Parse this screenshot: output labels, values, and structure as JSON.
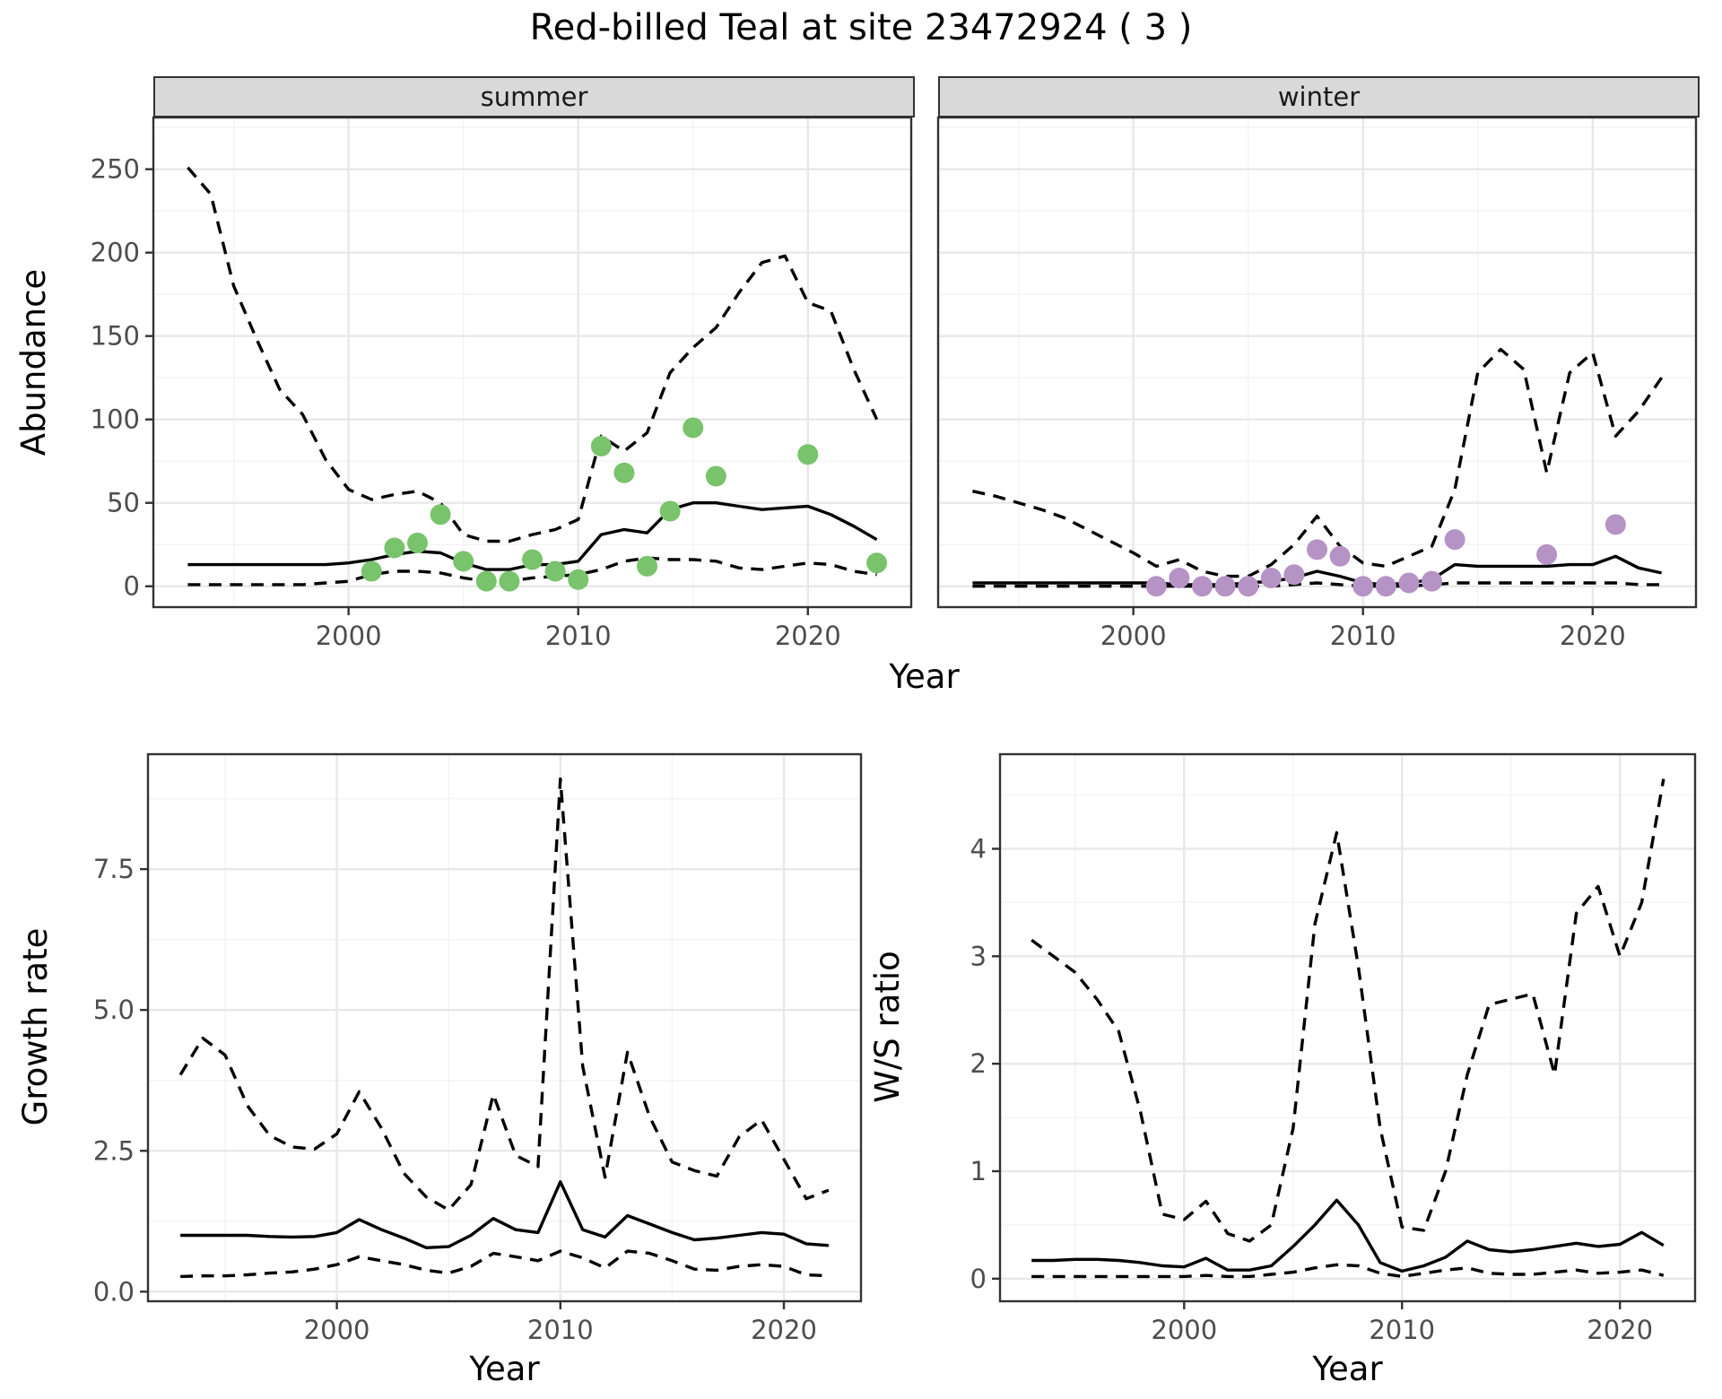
{
  "title": "Red-billed Teal at site 23472924 ( 3 )",
  "colors": {
    "summer_points": "#78c36c",
    "winter_points": "#b593c5",
    "line": "#000000",
    "strip_fill": "#d9d9d9",
    "panel_border": "#333333",
    "grid_major": "#e8e8e8",
    "grid_minor": "#f3f3f3",
    "tick_text": "#4d4d4d"
  },
  "chart_data": [
    {
      "id": "abundance-summer",
      "type": "line",
      "facet_label": "summer",
      "ylabel": "Abundance",
      "xlabel": "Year",
      "xlim": [
        1991.5,
        2024.5
      ],
      "ylim": [
        -12.5,
        281
      ],
      "xticks": [
        2000,
        2010,
        2020
      ],
      "xtick_labels": [
        "2000",
        "2010",
        "2020"
      ],
      "xticks_minor": [
        1995,
        2005,
        2015
      ],
      "yticks": [
        0,
        50,
        100,
        150,
        200,
        250
      ],
      "ytick_labels": [
        "0",
        "50",
        "100",
        "150",
        "200",
        "250"
      ],
      "yticks_minor": [
        25,
        75,
        125,
        175,
        225,
        275
      ],
      "x": [
        1993,
        1994,
        1995,
        1996,
        1997,
        1998,
        1999,
        2000,
        2001,
        2002,
        2003,
        2004,
        2005,
        2006,
        2007,
        2008,
        2009,
        2010,
        2011,
        2012,
        2013,
        2014,
        2015,
        2016,
        2017,
        2018,
        2019,
        2020,
        2021,
        2022,
        2023
      ],
      "series": [
        {
          "name": "upper_95ci",
          "style": "dashed",
          "values": [
            251,
            235,
            180,
            148,
            118,
            103,
            76,
            58,
            52,
            55,
            57,
            50,
            31,
            27,
            27,
            31,
            34,
            40,
            90,
            81,
            92,
            128,
            143,
            155,
            176,
            194,
            198,
            170,
            165,
            130,
            100
          ]
        },
        {
          "name": "lower_95ci",
          "style": "dashed",
          "values": [
            1,
            1,
            1,
            1,
            1,
            1,
            2,
            3,
            7,
            9,
            9,
            8,
            5,
            3,
            3,
            5,
            6,
            7,
            10,
            15,
            17,
            16,
            16,
            15,
            11,
            10,
            12,
            14,
            13,
            9,
            7
          ]
        },
        {
          "name": "median_estimate",
          "style": "solid",
          "values": [
            13,
            13,
            13,
            13,
            13,
            13,
            13,
            14,
            16,
            19,
            21,
            20,
            14,
            10,
            10,
            13,
            13,
            15,
            31,
            34,
            32,
            46,
            50,
            50,
            48,
            46,
            47,
            48,
            43,
            36,
            28
          ]
        }
      ],
      "points": {
        "name": "observed-counts-summer",
        "color": "#78c36c",
        "x": [
          2001,
          2002,
          2003,
          2004,
          2005,
          2006,
          2007,
          2008,
          2009,
          2010,
          2011,
          2012,
          2013,
          2014,
          2015,
          2016,
          2020,
          2023
        ],
        "y": [
          9,
          23,
          26,
          43,
          15,
          3,
          3,
          16,
          9,
          4,
          84,
          68,
          12,
          45,
          95,
          66,
          79,
          14
        ]
      }
    },
    {
      "id": "abundance-winter",
      "type": "line",
      "facet_label": "winter",
      "ylabel": "Abundance",
      "xlabel": "Year",
      "xlim": [
        1991.5,
        2024.5
      ],
      "ylim": [
        -12.5,
        281
      ],
      "xticks": [
        2000,
        2010,
        2020
      ],
      "xtick_labels": [
        "2000",
        "2010",
        "2020"
      ],
      "xticks_minor": [
        1995,
        2005,
        2015
      ],
      "yticks": [
        0,
        50,
        100,
        150,
        200,
        250
      ],
      "ytick_labels": [
        "0",
        "50",
        "100",
        "150",
        "200",
        "250"
      ],
      "yticks_minor": [
        25,
        75,
        125,
        175,
        225,
        275
      ],
      "x": [
        1993,
        1994,
        1995,
        1996,
        1997,
        1998,
        1999,
        2000,
        2001,
        2002,
        2003,
        2004,
        2005,
        2006,
        2007,
        2008,
        2009,
        2010,
        2011,
        2012,
        2013,
        2014,
        2015,
        2016,
        2017,
        2018,
        2019,
        2020,
        2021,
        2022,
        2023
      ],
      "series": [
        {
          "name": "upper_95ci",
          "style": "dashed",
          "values": [
            57,
            54,
            50,
            46,
            41,
            34,
            27,
            20,
            12,
            16,
            9,
            6,
            6,
            13,
            25,
            42,
            24,
            14,
            12,
            18,
            24,
            58,
            128,
            142,
            130,
            68,
            128,
            140,
            90,
            105,
            125
          ]
        },
        {
          "name": "lower_95ci",
          "style": "dashed",
          "values": [
            0,
            0,
            0,
            0,
            0,
            0,
            0,
            0,
            0,
            0,
            0,
            0,
            0,
            0,
            1,
            2,
            1,
            0,
            0,
            0,
            1,
            2,
            2,
            2,
            2,
            2,
            2,
            2,
            2,
            1,
            1
          ]
        },
        {
          "name": "median_estimate",
          "style": "solid",
          "values": [
            2,
            2,
            2,
            2,
            2,
            2,
            2,
            2,
            2,
            1,
            1,
            1,
            2,
            3,
            5,
            9,
            6,
            2,
            1,
            2,
            4,
            13,
            12,
            12,
            12,
            12,
            13,
            13,
            18,
            11,
            8
          ]
        }
      ],
      "points": {
        "name": "observed-counts-winter",
        "color": "#b593c5",
        "x": [
          2001,
          2002,
          2003,
          2004,
          2005,
          2006,
          2007,
          2008,
          2009,
          2010,
          2011,
          2012,
          2013,
          2014,
          2018,
          2021
        ],
        "y": [
          0,
          5,
          0,
          0,
          0,
          5,
          7,
          22,
          18,
          0,
          0,
          2,
          3,
          28,
          19,
          37
        ]
      }
    },
    {
      "id": "growth-rate",
      "type": "line",
      "facet_label": "",
      "ylabel": "Growth rate",
      "xlabel": "Year",
      "xlim": [
        1991.55,
        2023.45
      ],
      "ylim": [
        -0.17,
        9.54
      ],
      "xticks": [
        2000,
        2010,
        2020
      ],
      "xtick_labels": [
        "2000",
        "2010",
        "2020"
      ],
      "xticks_minor": [
        1995,
        2005,
        2015
      ],
      "yticks": [
        0.0,
        2.5,
        5.0,
        7.5
      ],
      "ytick_labels": [
        "0.0",
        "2.5",
        "5.0",
        "7.5"
      ],
      "yticks_minor": [
        1.25,
        3.75,
        6.25,
        8.75
      ],
      "x": [
        1993,
        1994,
        1995,
        1996,
        1997,
        1998,
        1999,
        2000,
        2001,
        2002,
        2003,
        2004,
        2005,
        2006,
        2007,
        2008,
        2009,
        2010,
        2011,
        2012,
        2013,
        2014,
        2015,
        2016,
        2017,
        2018,
        2019,
        2020,
        2021,
        2022
      ],
      "series": [
        {
          "name": "upper_95ci",
          "style": "dashed",
          "values": [
            3.85,
            4.5,
            4.2,
            3.3,
            2.77,
            2.57,
            2.53,
            2.8,
            3.55,
            2.9,
            2.1,
            1.68,
            1.45,
            1.9,
            3.5,
            2.42,
            2.22,
            9.1,
            4.0,
            2.03,
            4.25,
            3.1,
            2.3,
            2.15,
            2.05,
            2.75,
            3.05,
            2.35,
            1.65,
            1.8
          ]
        },
        {
          "name": "lower_95ci",
          "style": "dashed",
          "values": [
            0.27,
            0.28,
            0.28,
            0.3,
            0.33,
            0.35,
            0.4,
            0.48,
            0.62,
            0.55,
            0.48,
            0.38,
            0.33,
            0.45,
            0.68,
            0.62,
            0.55,
            0.72,
            0.6,
            0.42,
            0.72,
            0.68,
            0.55,
            0.4,
            0.38,
            0.45,
            0.48,
            0.45,
            0.3,
            0.28
          ]
        },
        {
          "name": "median_estimate",
          "style": "solid",
          "values": [
            1.0,
            1.0,
            1.0,
            1.0,
            0.98,
            0.97,
            0.98,
            1.05,
            1.28,
            1.1,
            0.95,
            0.78,
            0.8,
            1.0,
            1.3,
            1.1,
            1.05,
            1.95,
            1.1,
            0.97,
            1.35,
            1.2,
            1.05,
            0.92,
            0.95,
            1.0,
            1.05,
            1.02,
            0.85,
            0.82
          ]
        }
      ],
      "points": null
    },
    {
      "id": "ws-ratio",
      "type": "line",
      "facet_label": "",
      "ylabel": "W/S ratio",
      "xlabel": "Year",
      "xlim": [
        1991.55,
        2023.45
      ],
      "ylim": [
        -0.21,
        4.88
      ],
      "xticks": [
        2000,
        2010,
        2020
      ],
      "xtick_labels": [
        "2000",
        "2010",
        "2020"
      ],
      "xticks_minor": [
        1995,
        2005,
        2015
      ],
      "yticks": [
        0,
        1,
        2,
        3,
        4
      ],
      "ytick_labels": [
        "0",
        "1",
        "2",
        "3",
        "4"
      ],
      "yticks_minor": [
        0.5,
        1.5,
        2.5,
        3.5,
        4.5
      ],
      "x": [
        1993,
        1994,
        1995,
        1996,
        1997,
        1998,
        1999,
        2000,
        2001,
        2002,
        2003,
        2004,
        2005,
        2006,
        2007,
        2008,
        2009,
        2010,
        2011,
        2012,
        2013,
        2014,
        2015,
        2016,
        2017,
        2018,
        2019,
        2020,
        2021,
        2022
      ],
      "series": [
        {
          "name": "upper_95ci",
          "style": "dashed",
          "values": [
            3.15,
            3.0,
            2.85,
            2.6,
            2.3,
            1.55,
            0.6,
            0.55,
            0.72,
            0.42,
            0.35,
            0.5,
            1.4,
            3.3,
            4.15,
            2.9,
            1.4,
            0.48,
            0.45,
            1.0,
            1.9,
            2.55,
            2.6,
            2.65,
            1.9,
            3.4,
            3.65,
            3.0,
            3.5,
            4.65
          ]
        },
        {
          "name": "lower_95ci",
          "style": "dashed",
          "values": [
            0.02,
            0.02,
            0.02,
            0.02,
            0.02,
            0.02,
            0.02,
            0.02,
            0.03,
            0.02,
            0.02,
            0.04,
            0.06,
            0.1,
            0.13,
            0.12,
            0.05,
            0.02,
            0.05,
            0.08,
            0.1,
            0.05,
            0.04,
            0.04,
            0.06,
            0.08,
            0.05,
            0.06,
            0.08,
            0.03
          ]
        },
        {
          "name": "median_estimate",
          "style": "solid",
          "values": [
            0.17,
            0.17,
            0.18,
            0.18,
            0.17,
            0.15,
            0.12,
            0.11,
            0.19,
            0.08,
            0.08,
            0.12,
            0.3,
            0.5,
            0.73,
            0.5,
            0.15,
            0.07,
            0.12,
            0.2,
            0.35,
            0.27,
            0.25,
            0.27,
            0.3,
            0.33,
            0.3,
            0.32,
            0.43,
            0.31
          ]
        }
      ],
      "points": null
    }
  ]
}
